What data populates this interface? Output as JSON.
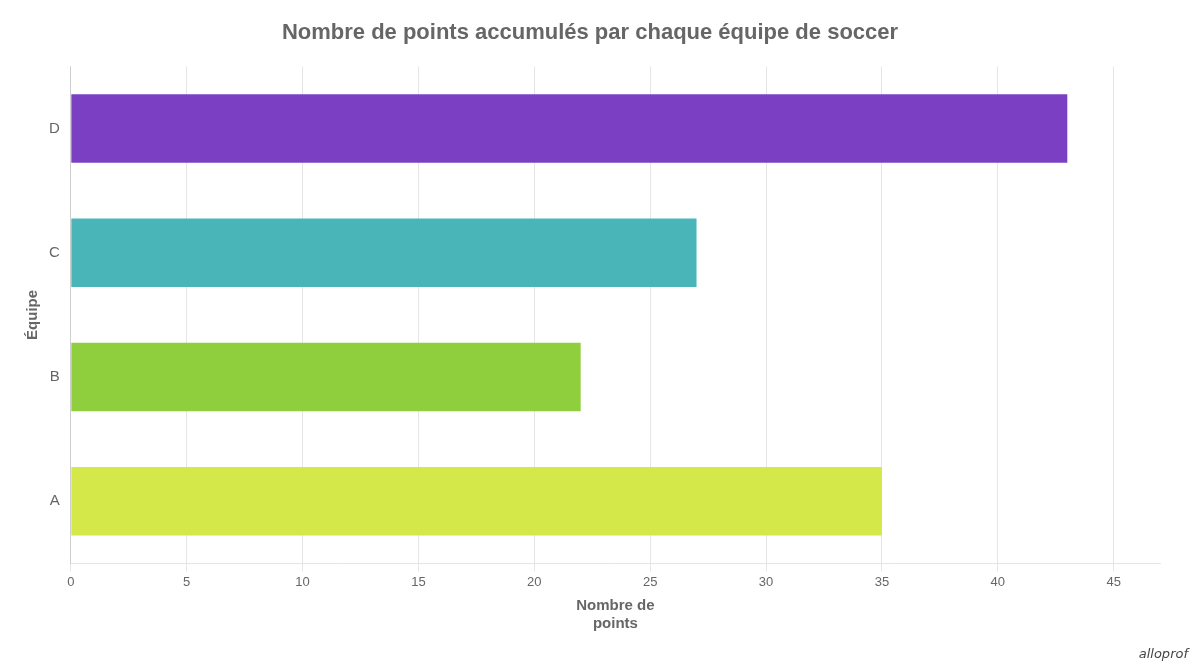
{
  "chart_data": {
    "type": "bar",
    "orientation": "horizontal",
    "title": "Nombre de points accumulés par chaque équipe de soccer",
    "xlabel": "Nombre de\npoints",
    "ylabel": "Équipe",
    "categories": [
      "A",
      "B",
      "C",
      "D"
    ],
    "values": [
      35,
      22,
      27,
      43
    ],
    "colors": [
      "#d4e84a",
      "#8fce3c",
      "#4ab5b8",
      "#7b3fc4"
    ],
    "xlim": [
      0,
      47
    ],
    "xticks": [
      0,
      5,
      10,
      15,
      20,
      25,
      30,
      35,
      40,
      45
    ],
    "grid": true,
    "annotations": [
      "alloprof"
    ]
  }
}
